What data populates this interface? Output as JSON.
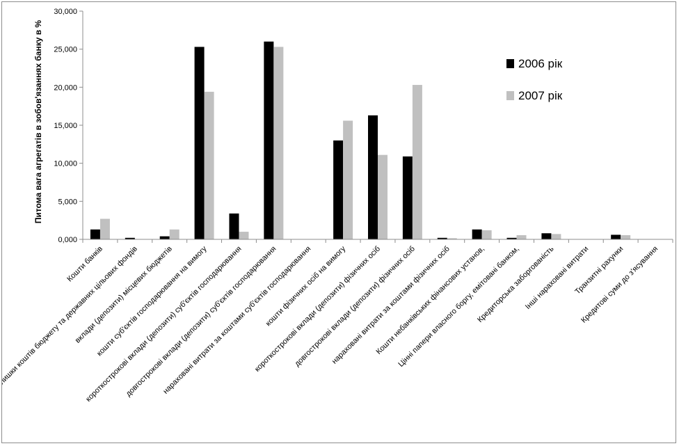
{
  "chart_data": {
    "type": "bar",
    "ylabel": "Питома вага агрегатів в зобов'язаннях банку в %",
    "ylim": [
      0,
      30
    ],
    "y_ticks": [
      "0,000",
      "5,000",
      "10,000",
      "15,000",
      "20,000",
      "25,000",
      "30,000"
    ],
    "grid": false,
    "legend_position": "top-right",
    "categories": [
      "Кошти банків",
      "залишки коштів бюджету та державних цільових фондів",
      "вклади (депозити) місцевих бюджетів",
      "кошти суб'єктів господарювання на вимогу",
      "короткострокові вклади (депозити) суб'єктів господарювання",
      "довгострокові вклади (депозити) суб'єктів господарювання",
      "нараховані витрати за коштами суб'єктів господарювання",
      "кошти фізичних осіб на вимогу",
      "короткострокові вклади (депозити) фізичних осіб",
      "довгострокові  вклади (депозити) фізичних осіб",
      "нараховані витрати за коштами  фізичних осіб",
      "Кошти небанківських фінансових  установ,",
      "Цінні папери власного боргу, емітовані банком,",
      "Кредиторська заборгованість",
      "Інші нараховані  витрати",
      "Транзитні рахунки",
      "Кредитові суми до з'ясування"
    ],
    "series": [
      {
        "name": "2006 рік",
        "color": "#000000",
        "values": [
          1.3,
          0.2,
          0.4,
          25.3,
          3.4,
          26.0,
          0,
          13.0,
          16.3,
          10.9,
          0.2,
          1.3,
          0.2,
          0.8,
          0,
          0.6,
          0
        ]
      },
      {
        "name": "2007 рік",
        "color": "#c0c0c0",
        "values": [
          2.7,
          0,
          1.3,
          19.4,
          1.0,
          25.3,
          0,
          15.6,
          11.1,
          20.3,
          0.15,
          1.2,
          0.55,
          0.7,
          0,
          0.55,
          0
        ]
      }
    ]
  }
}
